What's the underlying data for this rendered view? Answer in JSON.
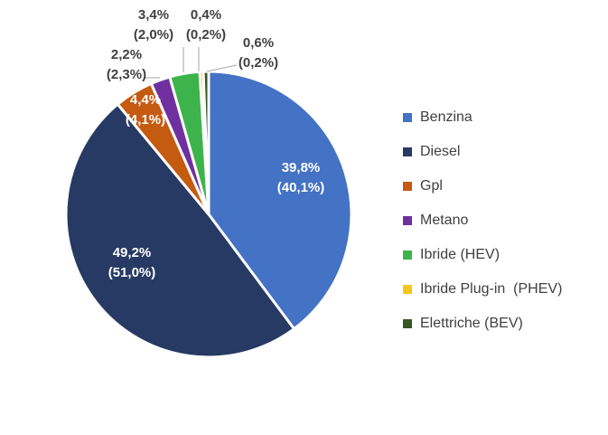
{
  "chart_data": {
    "type": "pie",
    "start_angle_deg": 0,
    "direction": "clockwise",
    "legend_position": "right",
    "slices": [
      {
        "name": "Benzina",
        "value": 39.8,
        "label_main": "39,8%",
        "label_sub": "(40,1%)",
        "color": "#4472C4",
        "label_color": "#ffffff"
      },
      {
        "name": "Diesel",
        "value": 49.2,
        "label_main": "49,2%",
        "label_sub": "(51,0%)",
        "color": "#263A63",
        "label_color": "#ffffff"
      },
      {
        "name": "Gpl",
        "value": 4.4,
        "label_main": "4,4%",
        "label_sub": "(4,1%)",
        "color": "#C55A11",
        "label_color": "#ffffff"
      },
      {
        "name": "Metano",
        "value": 2.2,
        "label_main": "2,2%",
        "label_sub": "(2,3%)",
        "color": "#7030A0",
        "label_color": "#404040"
      },
      {
        "name": "Ibride (HEV)",
        "value": 3.4,
        "label_main": "3,4%",
        "label_sub": "(2,0%)",
        "color": "#3CB44B",
        "label_color": "#404040"
      },
      {
        "name": "Ibride Plug-in  (PHEV)",
        "value": 0.4,
        "label_main": "0,4%",
        "label_sub": "(0,2%)",
        "color": "#F5C518",
        "label_color": "#404040"
      },
      {
        "name": "Elettriche (BEV)",
        "value": 0.6,
        "label_main": "0,6%",
        "label_sub": "(0,2%)",
        "color": "#375623",
        "label_color": "#404040"
      }
    ]
  }
}
